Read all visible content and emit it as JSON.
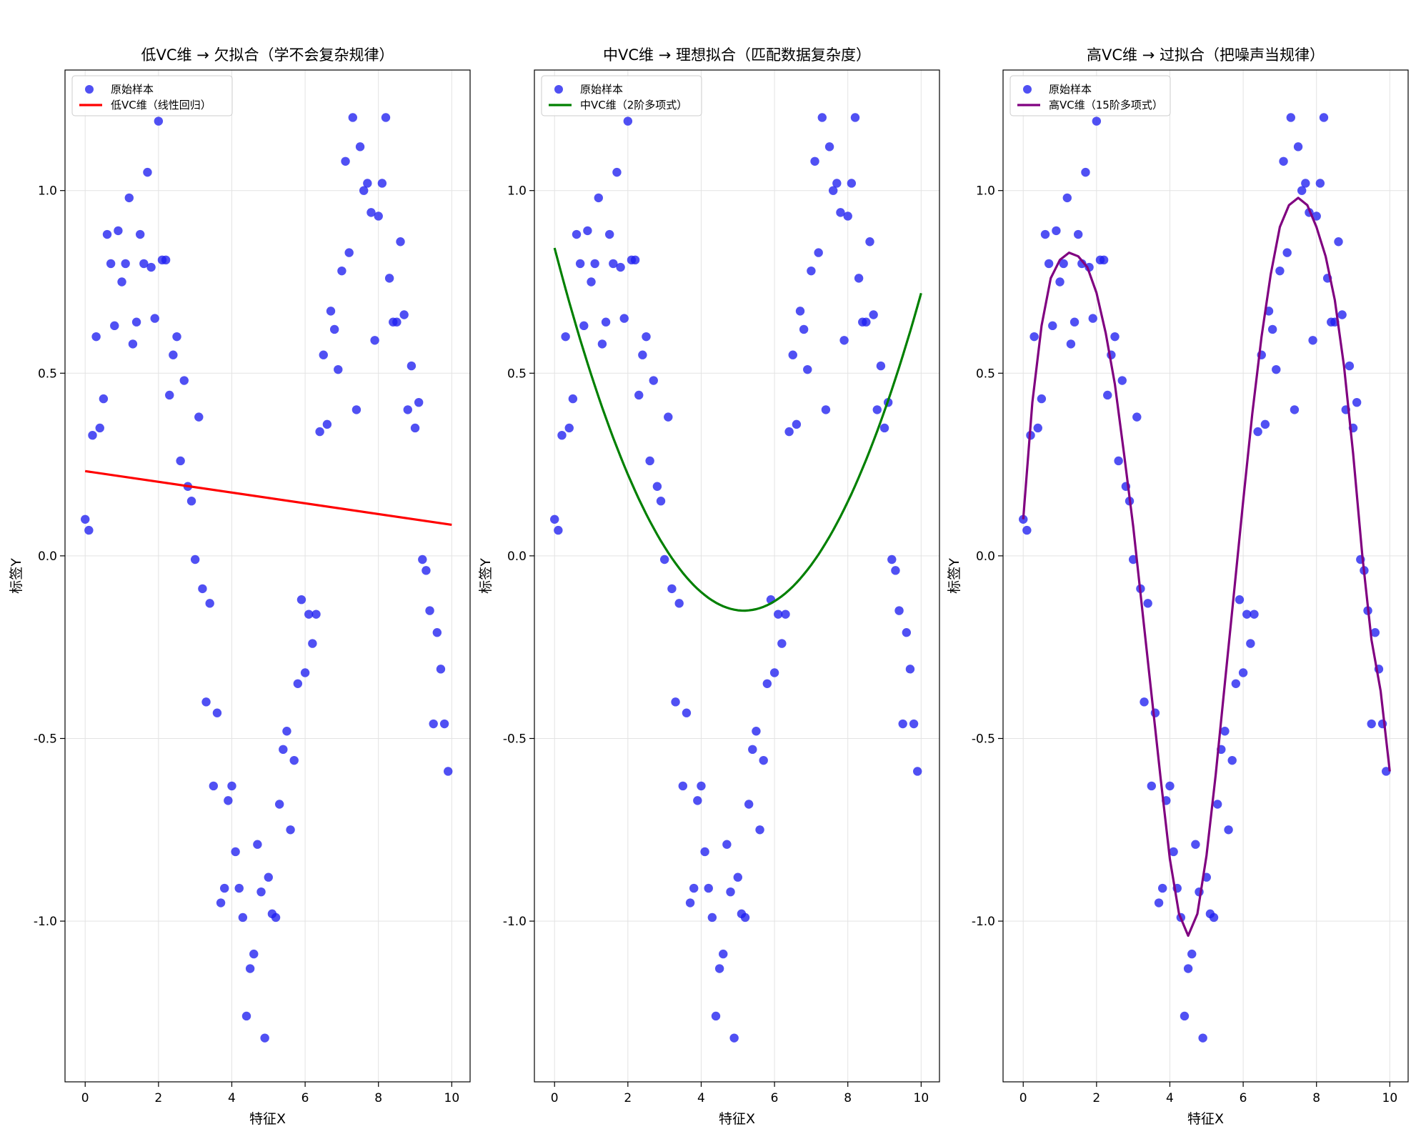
{
  "chart_data": [
    {
      "type": "scatter",
      "title": "低VC维 → 欠拟合（学不会复杂规律）",
      "xlabel": "特征X",
      "ylabel": "标签Y",
      "xlim": [
        -0.55,
        10.5
      ],
      "ylim": [
        -1.44,
        1.33
      ],
      "xticks": [
        0,
        2,
        4,
        6,
        8,
        10
      ],
      "yticks": [
        -1.0,
        -0.5,
        0.0,
        0.5,
        1.0
      ],
      "grid": true,
      "legend_position": "top-left",
      "scatter_label": "原始样本",
      "scatter_color": "#1f1fef",
      "fit_label": "低VC维（线性回归）",
      "fit_color": "#ff0000",
      "fit_kind": "linear",
      "fit_coeffs": [
        0.232,
        -0.0147
      ]
    },
    {
      "type": "scatter",
      "title": "中VC维 → 理想拟合（匹配数据复杂度）",
      "xlabel": "特征X",
      "ylabel": "标签Y",
      "xlim": [
        -0.55,
        10.5
      ],
      "ylim": [
        -1.44,
        1.33
      ],
      "xticks": [
        0,
        2,
        4,
        6,
        8,
        10
      ],
      "yticks": [
        -1.0,
        -0.5,
        0.0,
        0.5,
        1.0
      ],
      "grid": true,
      "legend_position": "top-left",
      "scatter_label": "原始样本",
      "scatter_color": "#1f1fef",
      "fit_label": "中VC维（2阶多项式）",
      "fit_color": "#008000",
      "fit_kind": "poly2",
      "fit_coeffs": [
        0.843,
        -0.3844,
        0.0372
      ]
    },
    {
      "type": "scatter",
      "title": "高VC维 → 过拟合（把噪声当规律）",
      "xlabel": "特征X",
      "ylabel": "标签Y",
      "xlim": [
        -0.55,
        10.5
      ],
      "ylim": [
        -1.44,
        1.33
      ],
      "xticks": [
        0,
        2,
        4,
        6,
        8,
        10
      ],
      "yticks": [
        -1.0,
        -0.5,
        0.0,
        0.5,
        1.0
      ],
      "grid": true,
      "legend_position": "top-left",
      "scatter_label": "原始样本",
      "scatter_color": "#1f1fef",
      "fit_label": "高VC维（15阶多项式）",
      "fit_color": "#800080",
      "fit_kind": "points",
      "fit_points": [
        [
          0,
          0.1
        ],
        [
          0.25,
          0.42
        ],
        [
          0.5,
          0.63
        ],
        [
          0.75,
          0.76
        ],
        [
          1.0,
          0.81
        ],
        [
          1.25,
          0.83
        ],
        [
          1.5,
          0.82
        ],
        [
          1.75,
          0.79
        ],
        [
          2.0,
          0.72
        ],
        [
          2.25,
          0.61
        ],
        [
          2.5,
          0.47
        ],
        [
          2.75,
          0.28
        ],
        [
          3.0,
          0.08
        ],
        [
          3.25,
          -0.15
        ],
        [
          3.5,
          -0.38
        ],
        [
          3.75,
          -0.61
        ],
        [
          4.0,
          -0.83
        ],
        [
          4.25,
          -0.98
        ],
        [
          4.5,
          -1.04
        ],
        [
          4.75,
          -0.98
        ],
        [
          5.0,
          -0.82
        ],
        [
          5.25,
          -0.6
        ],
        [
          5.5,
          -0.35
        ],
        [
          5.75,
          -0.1
        ],
        [
          6.0,
          0.15
        ],
        [
          6.25,
          0.39
        ],
        [
          6.5,
          0.6
        ],
        [
          6.75,
          0.77
        ],
        [
          7.0,
          0.9
        ],
        [
          7.25,
          0.96
        ],
        [
          7.5,
          0.98
        ],
        [
          7.75,
          0.96
        ],
        [
          8.0,
          0.9
        ],
        [
          8.25,
          0.82
        ],
        [
          8.5,
          0.7
        ],
        [
          8.75,
          0.52
        ],
        [
          9.0,
          0.28
        ],
        [
          9.25,
          0.0
        ],
        [
          9.5,
          -0.23
        ],
        [
          9.75,
          -0.37
        ],
        [
          10.0,
          -0.59
        ]
      ]
    }
  ],
  "samples": [
    [
      0.0,
      0.1
    ],
    [
      0.1,
      0.07
    ],
    [
      0.2,
      0.33
    ],
    [
      0.3,
      0.6
    ],
    [
      0.4,
      0.35
    ],
    [
      0.5,
      0.43
    ],
    [
      0.6,
      0.88
    ],
    [
      0.7,
      0.8
    ],
    [
      0.8,
      0.63
    ],
    [
      0.9,
      0.89
    ],
    [
      1.0,
      0.75
    ],
    [
      1.1,
      0.8
    ],
    [
      1.2,
      0.98
    ],
    [
      1.3,
      0.58
    ],
    [
      1.4,
      0.64
    ],
    [
      1.5,
      0.88
    ],
    [
      1.6,
      0.8
    ],
    [
      1.7,
      1.05
    ],
    [
      1.8,
      0.79
    ],
    [
      1.9,
      0.65
    ],
    [
      2.0,
      1.19
    ],
    [
      2.1,
      0.81
    ],
    [
      2.2,
      0.81
    ],
    [
      2.3,
      0.44
    ],
    [
      2.4,
      0.55
    ],
    [
      2.5,
      0.6
    ],
    [
      2.6,
      0.26
    ],
    [
      2.7,
      0.48
    ],
    [
      2.8,
      0.19
    ],
    [
      2.9,
      0.15
    ],
    [
      3.0,
      -0.01
    ],
    [
      3.1,
      0.38
    ],
    [
      3.2,
      -0.09
    ],
    [
      3.3,
      -0.4
    ],
    [
      3.4,
      -0.13
    ],
    [
      3.5,
      -0.63
    ],
    [
      3.6,
      -0.43
    ],
    [
      3.7,
      -0.95
    ],
    [
      3.8,
      -0.91
    ],
    [
      3.9,
      -0.67
    ],
    [
      4.0,
      -0.63
    ],
    [
      4.1,
      -0.81
    ],
    [
      4.2,
      -0.91
    ],
    [
      4.3,
      -0.99
    ],
    [
      4.4,
      -1.26
    ],
    [
      4.5,
      -1.13
    ],
    [
      4.6,
      -1.09
    ],
    [
      4.7,
      -0.79
    ],
    [
      4.8,
      -0.92
    ],
    [
      4.9,
      -1.32
    ],
    [
      5.0,
      -0.88
    ],
    [
      5.1,
      -0.98
    ],
    [
      5.2,
      -0.99
    ],
    [
      5.3,
      -0.68
    ],
    [
      5.4,
      -0.53
    ],
    [
      5.5,
      -0.48
    ],
    [
      5.6,
      -0.75
    ],
    [
      5.7,
      -0.56
    ],
    [
      5.8,
      -0.35
    ],
    [
      5.9,
      -0.12
    ],
    [
      6.0,
      -0.32
    ],
    [
      6.1,
      -0.16
    ],
    [
      6.2,
      -0.24
    ],
    [
      6.3,
      -0.16
    ],
    [
      6.4,
      0.34
    ],
    [
      6.5,
      0.55
    ],
    [
      6.6,
      0.36
    ],
    [
      6.7,
      0.67
    ],
    [
      6.8,
      0.62
    ],
    [
      6.9,
      0.51
    ],
    [
      7.0,
      0.78
    ],
    [
      7.1,
      1.08
    ],
    [
      7.2,
      0.83
    ],
    [
      7.3,
      1.2
    ],
    [
      7.4,
      0.4
    ],
    [
      7.5,
      1.12
    ],
    [
      7.6,
      1.0
    ],
    [
      7.7,
      1.02
    ],
    [
      7.8,
      0.94
    ],
    [
      7.9,
      0.59
    ],
    [
      8.0,
      0.93
    ],
    [
      8.1,
      1.02
    ],
    [
      8.2,
      1.2
    ],
    [
      8.3,
      0.76
    ],
    [
      8.4,
      0.64
    ],
    [
      8.5,
      0.64
    ],
    [
      8.6,
      0.86
    ],
    [
      8.7,
      0.66
    ],
    [
      8.8,
      0.4
    ],
    [
      8.9,
      0.52
    ],
    [
      9.0,
      0.35
    ],
    [
      9.1,
      0.42
    ],
    [
      9.2,
      -0.01
    ],
    [
      9.3,
      -0.04
    ],
    [
      9.4,
      -0.15
    ],
    [
      9.5,
      -0.46
    ],
    [
      9.6,
      -0.21
    ],
    [
      9.7,
      -0.31
    ],
    [
      9.8,
      -0.46
    ],
    [
      9.9,
      -0.59
    ]
  ]
}
